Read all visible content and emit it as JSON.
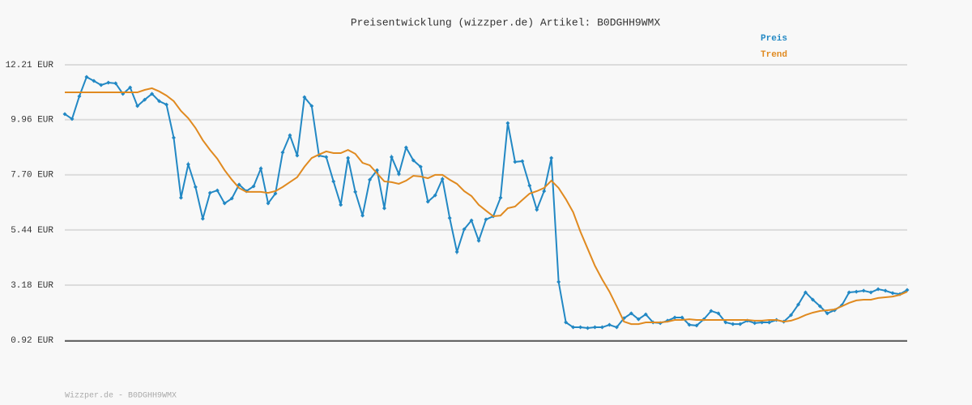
{
  "chart_data": {
    "type": "line",
    "title": "Preisentwicklung (wizzper.de) Artikel: B0DGHH9WMX",
    "footer": "Wizzper.de - B0DGHH9WMX",
    "ylim": [
      0.92,
      12.21
    ],
    "yticks": [
      {
        "value": 0.92,
        "label": "0.92 EUR"
      },
      {
        "value": 3.18,
        "label": "3.18 EUR"
      },
      {
        "value": 5.44,
        "label": "5.44 EUR"
      },
      {
        "value": 7.7,
        "label": "7.70 EUR"
      },
      {
        "value": 9.96,
        "label": "9.96 EUR"
      },
      {
        "value": 12.21,
        "label": "12.21 EUR"
      }
    ],
    "grid": true,
    "series": [
      {
        "name": "Preis",
        "color": "#2288c4",
        "markers": true,
        "values": [
          10.19,
          9.99,
          10.92,
          11.71,
          11.55,
          11.38,
          11.48,
          11.45,
          11.02,
          11.28,
          10.52,
          10.78,
          11.02,
          10.72,
          10.58,
          9.22,
          6.76,
          8.13,
          7.2,
          5.9,
          6.96,
          7.06,
          6.53,
          6.73,
          7.3,
          7.03,
          7.23,
          7.96,
          6.53,
          6.93,
          8.62,
          9.32,
          8.49,
          10.88,
          10.52,
          8.49,
          8.43,
          7.43,
          6.47,
          8.39,
          7.0,
          6.03,
          7.5,
          7.89,
          6.33,
          8.43,
          7.73,
          8.82,
          8.29,
          8.03,
          6.6,
          6.86,
          7.53,
          5.93,
          4.54,
          5.47,
          5.83,
          5.0,
          5.87,
          6.0,
          6.76,
          9.82,
          8.23,
          8.26,
          7.26,
          6.27,
          7.03,
          8.39,
          3.31,
          1.65,
          1.45,
          1.45,
          1.42,
          1.45,
          1.45,
          1.55,
          1.45,
          1.82,
          2.02,
          1.78,
          1.98,
          1.65,
          1.62,
          1.72,
          1.85,
          1.85,
          1.55,
          1.52,
          1.78,
          2.12,
          2.02,
          1.65,
          1.58,
          1.58,
          1.72,
          1.62,
          1.65,
          1.65,
          1.75,
          1.68,
          1.95,
          2.38,
          2.88,
          2.58,
          2.31,
          2.02,
          2.15,
          2.35,
          2.88,
          2.91,
          2.95,
          2.88,
          3.01,
          2.95,
          2.85,
          2.81,
          2.98
        ]
      },
      {
        "name": "Trend",
        "color": "#e08a20",
        "markers": false,
        "values": [
          11.08,
          11.08,
          11.08,
          11.08,
          11.08,
          11.08,
          11.08,
          11.08,
          11.08,
          11.08,
          11.08,
          11.18,
          11.25,
          11.12,
          10.95,
          10.72,
          10.32,
          10.02,
          9.62,
          9.12,
          8.72,
          8.36,
          7.89,
          7.5,
          7.16,
          7.0,
          7.0,
          7.0,
          6.96,
          7.03,
          7.2,
          7.4,
          7.6,
          8.03,
          8.39,
          8.53,
          8.66,
          8.59,
          8.59,
          8.72,
          8.56,
          8.19,
          8.09,
          7.76,
          7.43,
          7.4,
          7.33,
          7.46,
          7.66,
          7.63,
          7.56,
          7.7,
          7.7,
          7.5,
          7.33,
          7.03,
          6.83,
          6.47,
          6.23,
          6.0,
          6.03,
          6.33,
          6.4,
          6.67,
          6.93,
          7.03,
          7.16,
          7.46,
          7.16,
          6.7,
          6.17,
          5.37,
          4.67,
          3.97,
          3.41,
          2.91,
          2.31,
          1.68,
          1.58,
          1.58,
          1.65,
          1.65,
          1.65,
          1.68,
          1.75,
          1.75,
          1.78,
          1.75,
          1.75,
          1.75,
          1.75,
          1.75,
          1.75,
          1.75,
          1.75,
          1.72,
          1.72,
          1.75,
          1.75,
          1.68,
          1.72,
          1.82,
          1.95,
          2.05,
          2.12,
          2.15,
          2.18,
          2.31,
          2.45,
          2.55,
          2.58,
          2.58,
          2.65,
          2.68,
          2.71,
          2.78,
          2.91
        ]
      }
    ]
  }
}
